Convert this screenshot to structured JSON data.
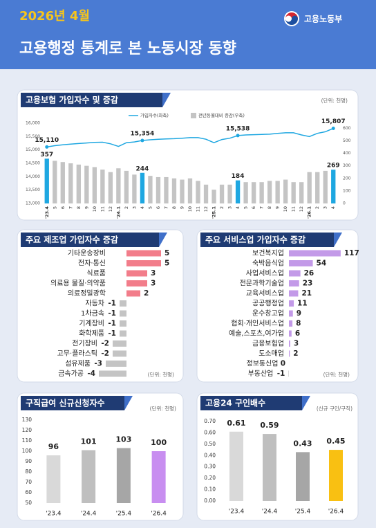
{
  "header": {
    "date": "2026년 4월",
    "title": "고용행정 통계로 본 노동시장 동향",
    "ministry": "고용노동부"
  },
  "chart_data": [
    {
      "type": "bar-line",
      "title": "고용보험 가입자수 및 증감",
      "unit": "(단위: 천명)",
      "categories": [
        "'23.4",
        "5",
        "6",
        "7",
        "8",
        "9",
        "10",
        "11",
        "12",
        "'24.1",
        "2",
        "3",
        "4",
        "5",
        "6",
        "7",
        "8",
        "9",
        "10",
        "11",
        "12",
        "'25.1",
        "2",
        "3",
        "4",
        "5",
        "6",
        "7",
        "8",
        "9",
        "10",
        "11",
        "12",
        "'26.1",
        "2",
        "3",
        "4"
      ],
      "series": [
        {
          "name": "가입자수(좌축)",
          "type": "line",
          "color": "#1ea7e1",
          "values": [
            15110,
            15160,
            15190,
            15220,
            15240,
            15260,
            15280,
            15290,
            15230,
            15130,
            15270,
            15300,
            15354,
            15380,
            15400,
            15410,
            15420,
            15440,
            15460,
            15460,
            15400,
            15270,
            15390,
            15440,
            15538,
            15560,
            15570,
            15580,
            15590,
            15620,
            15640,
            15640,
            15560,
            15500,
            15620,
            15680,
            15807
          ],
          "value_labels": [
            "15,110",
            null,
            null,
            null,
            null,
            null,
            null,
            null,
            null,
            null,
            null,
            null,
            "15,354",
            null,
            null,
            null,
            null,
            null,
            null,
            null,
            null,
            null,
            null,
            null,
            "15,538",
            null,
            null,
            null,
            null,
            null,
            null,
            null,
            null,
            null,
            null,
            null,
            "15,807"
          ]
        },
        {
          "name": "전년동월대비 증감(우축)",
          "type": "bar",
          "axis": "y2",
          "color": "#c4c4c4",
          "highlight_color": "#1ea7e1",
          "values": [
            357,
            340,
            330,
            320,
            310,
            300,
            290,
            270,
            250,
            280,
            260,
            230,
            244,
            220,
            210,
            210,
            200,
            190,
            200,
            180,
            150,
            110,
            150,
            150,
            184,
            170,
            170,
            170,
            180,
            180,
            190,
            170,
            170,
            250,
            250,
            260,
            269
          ],
          "value_labels": [
            "357",
            null,
            null,
            null,
            null,
            null,
            null,
            null,
            null,
            null,
            null,
            null,
            "244",
            null,
            null,
            null,
            null,
            null,
            null,
            null,
            null,
            null,
            null,
            null,
            "184",
            null,
            null,
            null,
            null,
            null,
            null,
            null,
            null,
            null,
            null,
            null,
            "269"
          ]
        }
      ],
      "ylim": [
        13000,
        16000
      ],
      "yticks": [
        {
          "value": 13000,
          "label": "13,000"
        },
        {
          "value": 13500,
          "label": "13,500"
        },
        {
          "value": 14000,
          "label": "14,000"
        },
        {
          "value": 14500,
          "label": "14,500"
        },
        {
          "value": 15000,
          "label": "15,000"
        },
        {
          "value": 15500,
          "label": "15,500"
        },
        {
          "value": 16000,
          "label": "16,000"
        }
      ],
      "y2lim": [
        0,
        640
      ],
      "y2ticks": [
        0,
        100,
        200,
        300,
        400,
        500,
        600
      ]
    },
    {
      "type": "hbar",
      "title": "주요 제조업 가입자수 증감",
      "unit": "(단위: 천명)",
      "categories": [
        "기타운송장비",
        "전자·통신",
        "식료품",
        "의료용 물질·의약품",
        "의료정밀광학",
        "자동차",
        "1차금속",
        "기계장비",
        "화학제품",
        "전기장비",
        "고무·플라스틱",
        "섬유제품",
        "금속가공"
      ],
      "values": [
        5,
        5,
        3,
        3,
        2,
        -1,
        -1,
        -1,
        -1,
        -2,
        -2,
        -3,
        -4
      ],
      "positive_color": "#f27d8a",
      "negative_color": "#c4c4c4"
    },
    {
      "type": "hbar",
      "title": "주요 서비스업 가입자수 증감",
      "unit": "(단위: 천명)",
      "categories": [
        "보건복지업",
        "숙박음식업",
        "사업서비스업",
        "전문과학기술업",
        "교육서비스업",
        "공공행정업",
        "운수창고업",
        "협회·개인서비스업",
        "예술,스포츠,여가업",
        "금융보험업",
        "도소매업",
        "정보통신업",
        "부동산업"
      ],
      "values": [
        117,
        54,
        26,
        23,
        21,
        11,
        9,
        8,
        6,
        3,
        2,
        0,
        -1
      ],
      "positive_color": "#c39ae8",
      "negative_color": "#c4c4c4"
    },
    {
      "type": "bar",
      "title": "구직급여 신규신청자수",
      "unit": "(단위: 천명)",
      "categories": [
        "'23.4",
        "'24.4",
        "'25.4",
        "'26.4"
      ],
      "values": [
        96,
        101,
        103,
        100
      ],
      "colors": [
        "#d9d9d9",
        "#bfbfbf",
        "#a6a6a6",
        "#c88ef0"
      ],
      "ylim": [
        50,
        130
      ],
      "yticks": [
        50,
        60,
        70,
        80,
        90,
        100,
        110,
        120,
        130
      ]
    },
    {
      "type": "bar",
      "title": "고용24 구인배수",
      "unit": "(신규 구인/구직)",
      "categories": [
        "'23.4",
        "'24.4",
        "'25.4",
        "'26.4"
      ],
      "values": [
        0.61,
        0.59,
        0.43,
        0.45
      ],
      "colors": [
        "#d9d9d9",
        "#bfbfbf",
        "#a6a6a6",
        "#f9c012"
      ],
      "ylim": [
        0,
        0.7
      ],
      "yticks": [
        {
          "value": 0,
          "label": "0.00"
        },
        {
          "value": 0.1,
          "label": "0.10"
        },
        {
          "value": 0.2,
          "label": "0.20"
        },
        {
          "value": 0.3,
          "label": "0.30"
        },
        {
          "value": 0.4,
          "label": "0.40"
        },
        {
          "value": 0.5,
          "label": "0.50"
        },
        {
          "value": 0.6,
          "label": "0.60"
        },
        {
          "value": 0.7,
          "label": "0.70"
        }
      ]
    }
  ]
}
